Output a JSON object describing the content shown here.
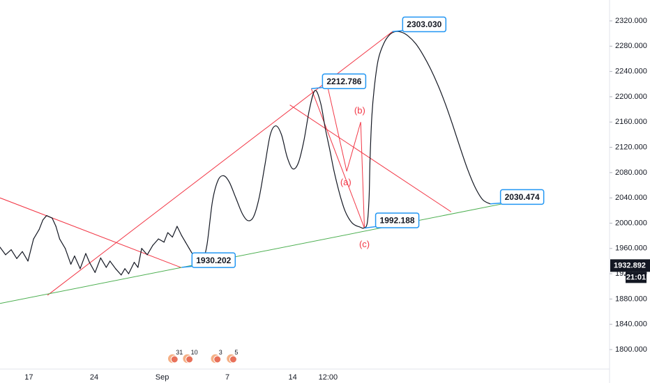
{
  "chart_data": {
    "type": "line",
    "title": "",
    "xlabel": "",
    "ylabel": "",
    "y_axis_position": "right",
    "grid": false,
    "ylim": [
      1765,
      2355
    ],
    "y_ticks": [
      "2320.000",
      "2280.000",
      "2240.000",
      "2200.000",
      "2160.000",
      "2120.000",
      "2080.000",
      "2040.000",
      "2000.000",
      "1960.000",
      "1920.000",
      "1880.000",
      "1840.000",
      "1800.000"
    ],
    "y_tick_values": [
      2320,
      2280,
      2240,
      2200,
      2160,
      2120,
      2080,
      2040,
      2000,
      1960,
      1920,
      1880,
      1840,
      1800
    ],
    "x_ticks": [
      {
        "label": "17",
        "t": 1.5
      },
      {
        "label": "24",
        "t": 8.5
      },
      {
        "label": "Sep",
        "t": 15.8
      },
      {
        "label": "7",
        "t": 22.8
      },
      {
        "label": "14",
        "t": 29.8
      },
      {
        "label": "12:00",
        "t": 33.6
      }
    ],
    "x_range": [
      -1.6,
      63.8
    ],
    "current_price": {
      "value": 1932.892,
      "label": "1932.892",
      "time_label": "21:01",
      "color": "#131722"
    },
    "price_series": {
      "name": "",
      "color": "#131722",
      "x": [
        -1.6,
        -1.0,
        -0.4,
        0.2,
        0.8,
        1.4,
        2.0,
        2.6,
        3.0,
        3.4,
        4.0,
        4.4,
        4.8,
        5.4,
        6.0,
        6.4,
        7.0,
        7.6,
        8.0,
        8.6,
        9.2,
        9.8,
        10.2,
        10.8,
        11.4,
        11.8,
        12.2,
        12.8,
        13.2,
        13.6,
        14.2,
        14.8,
        15.4,
        16.0,
        16.4,
        16.9,
        17.4,
        17.9,
        18.3,
        18.7,
        19.1,
        19.5,
        20.0
      ],
      "y": [
        1962,
        1950,
        1958,
        1944,
        1955,
        1940,
        1975,
        1990,
        2005,
        2012,
        2008,
        1995,
        1975,
        1960,
        1935,
        1948,
        1928,
        1952,
        1938,
        1922,
        1945,
        1930,
        1940,
        1928,
        1918,
        1928,
        1920,
        1938,
        1930,
        1960,
        1950,
        1965,
        1975,
        1970,
        1985,
        1978,
        1995,
        1980,
        1970,
        1960,
        1950,
        1935,
        1932.892
      ]
    },
    "projection_curve": {
      "name": "",
      "color": "#131722",
      "x": [
        20.0,
        20.6,
        21.2,
        21.8,
        22.4,
        23.0,
        23.7,
        24.4,
        25.0,
        25.6,
        26.2,
        26.8,
        27.4,
        28.0,
        28.6,
        29.2,
        29.8,
        30.4,
        31.0,
        31.6,
        32.2,
        32.8,
        33.3,
        33.8,
        34.2,
        34.6,
        35.0,
        35.4,
        35.8,
        36.2,
        36.6,
        37.0,
        37.4,
        37.8,
        38.0,
        38.1,
        38.3,
        38.6,
        39.0,
        39.6,
        40.2,
        40.8,
        41.5,
        42.2,
        43.0,
        43.8,
        44.6,
        45.4,
        46.2,
        47.0,
        47.8,
        48.6,
        49.4,
        50.2,
        51.0
      ],
      "y": [
        1930,
        1965,
        2035,
        2068,
        2075,
        2065,
        2040,
        2015,
        2004,
        2010,
        2040,
        2090,
        2140,
        2154,
        2140,
        2105,
        2086,
        2095,
        2130,
        2180,
        2210,
        2190,
        2150,
        2115,
        2085,
        2060,
        2038,
        2020,
        2008,
        2000,
        1996,
        1994,
        1992.188,
        2000,
        2040,
        2100,
        2170,
        2220,
        2260,
        2285,
        2298,
        2303.03,
        2302,
        2296,
        2284,
        2266,
        2244,
        2218,
        2188,
        2154,
        2118,
        2084,
        2056,
        2037,
        2030.474
      ]
    },
    "trendlines": [
      {
        "name": "",
        "color": "#f23645",
        "points": [
          [
            -1.6,
            2040
          ],
          [
            17.8,
            1930
          ]
        ]
      },
      {
        "name": "",
        "color": "#f23645",
        "points": [
          [
            3.5,
            1886
          ],
          [
            40.5,
            2303.03
          ]
        ]
      },
      {
        "name": "",
        "color": "#f23645",
        "points": [
          [
            29.5,
            2187
          ],
          [
            46.8,
            2018
          ]
        ]
      },
      {
        "name": "",
        "color": "#f23645",
        "points": [
          [
            31.8,
            2212.786
          ],
          [
            37.5,
            1992.188
          ]
        ]
      },
      {
        "name": "",
        "color": "#4caf50",
        "points": [
          [
            -1.6,
            1873
          ],
          [
            55.2,
            2039
          ]
        ]
      }
    ],
    "zigzag": {
      "color": "#f23645",
      "points": [
        [
          33.6,
          2212.786
        ],
        [
          35.6,
          2082
        ],
        [
          37.1,
          2160
        ],
        [
          37.5,
          1992.188
        ]
      ]
    },
    "wave_labels": [
      {
        "text": "(a)",
        "t": 35.5,
        "v": 2064
      },
      {
        "text": "(b)",
        "t": 37.0,
        "v": 2177
      },
      {
        "text": "(c)",
        "t": 37.5,
        "v": 1966
      }
    ],
    "callouts": [
      {
        "text": "1930.202",
        "anchor_t": 17.9,
        "anchor_v": 1930.202,
        "box_t": 19.0,
        "box_v": 1953
      },
      {
        "text": "2212.786",
        "anchor_t": 31.8,
        "anchor_v": 2212.786,
        "box_t": 33.0,
        "box_v": 2236
      },
      {
        "text": "2303.030",
        "anchor_t": 40.5,
        "anchor_v": 2303.03,
        "box_t": 41.6,
        "box_v": 2326
      },
      {
        "text": "1992.188",
        "anchor_t": 37.5,
        "anchor_v": 1992.188,
        "box_t": 38.7,
        "box_v": 2016
      },
      {
        "text": "2030.474",
        "anchor_t": 51.0,
        "anchor_v": 2030.474,
        "box_t": 52.1,
        "box_v": 2053
      }
    ],
    "event_markers": [
      {
        "t": 16.9,
        "count": "31"
      },
      {
        "t": 18.5,
        "count": "10"
      },
      {
        "t": 21.5,
        "count": "3"
      },
      {
        "t": 23.2,
        "count": "5"
      }
    ]
  }
}
